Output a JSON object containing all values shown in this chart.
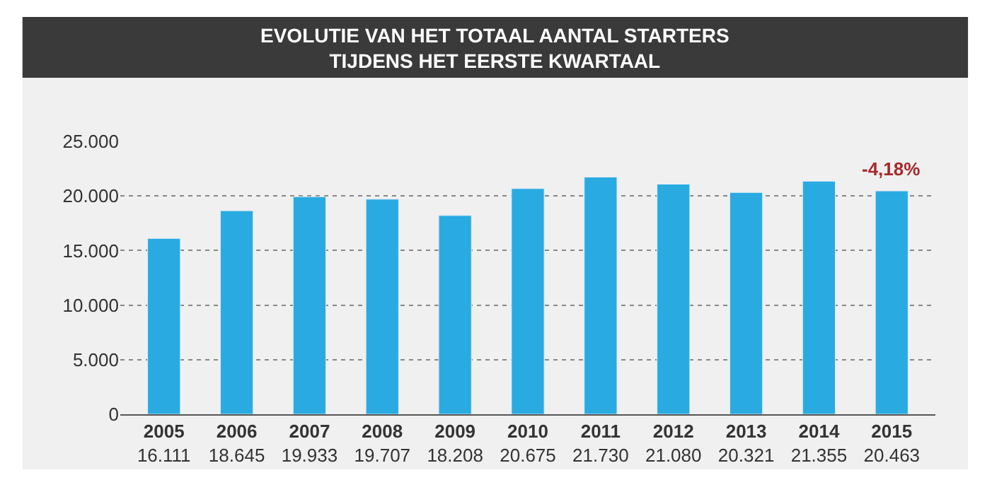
{
  "chart_data": {
    "type": "bar",
    "title": "EVOLUTIE VAN HET TOTAAL AANTAL STARTERS\nTIJDENS HET EERSTE KWARTAAL",
    "categories": [
      "2005",
      "2006",
      "2007",
      "2008",
      "2009",
      "2010",
      "2011",
      "2012",
      "2013",
      "2014",
      "2015"
    ],
    "values": [
      16111,
      18645,
      19933,
      19707,
      18208,
      20675,
      21730,
      21080,
      20321,
      21355,
      20463
    ],
    "color": "#29abe2",
    "ylim": [
      0,
      25000
    ],
    "yticks": [
      {
        "value": 0,
        "label": "0"
      },
      {
        "value": 5000,
        "label": "5.000"
      },
      {
        "value": 10000,
        "label": "10.000"
      },
      {
        "value": 15000,
        "label": "15.000"
      },
      {
        "value": 20000,
        "label": "20.000"
      },
      {
        "value": 25000,
        "label": "25.000"
      }
    ],
    "grid": "y",
    "value_labels": [
      "16.111",
      "18.645",
      "19.933",
      "19.707",
      "18.208",
      "20.675",
      "21.730",
      "21.080",
      "20.321",
      "21.355",
      "20.463"
    ],
    "annotations": [
      {
        "text": "-4,18%",
        "x": "2015",
        "y": 20463
      }
    ]
  }
}
